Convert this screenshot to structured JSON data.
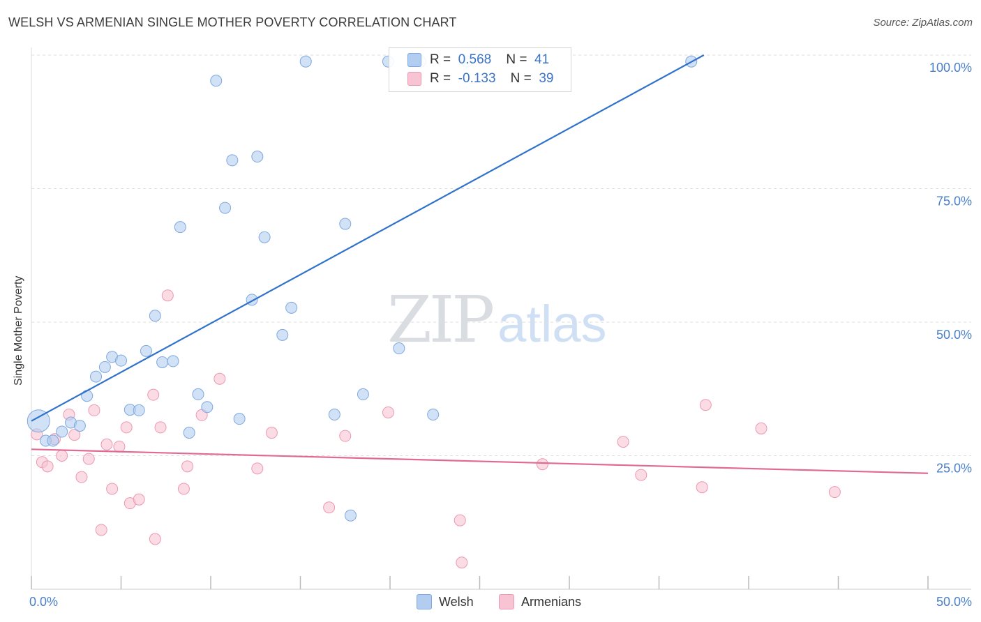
{
  "header": {
    "title": "WELSH VS ARMENIAN SINGLE MOTHER POVERTY CORRELATION CHART",
    "source": "Source: ZipAtlas.com"
  },
  "watermark": {
    "zip": "ZIP",
    "atlas": "atlas"
  },
  "legend_top": {
    "rows": [
      {
        "r_label": "R =",
        "r_value": "0.568",
        "n_label": "N =",
        "n_value": "41"
      },
      {
        "r_label": "R =",
        "r_value": "-0.133",
        "n_label": "N =",
        "n_value": "39"
      }
    ]
  },
  "legend_bottom": {
    "items": [
      "Welsh",
      "Armenians"
    ]
  },
  "colors": {
    "welsh_fill": "#b3cdf0",
    "welsh_stroke": "#7ea8e0",
    "welsh_line": "#2f72cc",
    "armenian_fill": "#f8c4d3",
    "armenian_stroke": "#ec98b2",
    "armenian_line": "#e16a93",
    "tick_label": "#4a7fcb",
    "grid": "#dddddd"
  },
  "chart_data": {
    "type": "scatter",
    "title": "WELSH VS ARMENIAN SINGLE MOTHER POVERTY CORRELATION CHART",
    "xlabel": "",
    "ylabel": "Single Mother Poverty",
    "xlim": [
      0,
      50
    ],
    "ylim": [
      0,
      100
    ],
    "x_tick_labels": [
      "0.0%",
      "50.0%"
    ],
    "y_ticks": [
      25,
      50,
      75,
      100
    ],
    "y_tick_labels": [
      "25.0%",
      "50.0%",
      "75.0%",
      "100.0%"
    ],
    "grid": true,
    "legend_position": "bottom",
    "series": [
      {
        "name": "Welsh",
        "R": 0.568,
        "N": 41,
        "trend": {
          "x": [
            0,
            37.5
          ],
          "y": [
            31.5,
            100
          ]
        },
        "points": [
          {
            "x": 0.4,
            "y": 31.5,
            "big": true
          },
          {
            "x": 0.8,
            "y": 27.8
          },
          {
            "x": 1.2,
            "y": 27.8
          },
          {
            "x": 1.7,
            "y": 29.5
          },
          {
            "x": 2.2,
            "y": 31.2
          },
          {
            "x": 2.7,
            "y": 30.6
          },
          {
            "x": 3.1,
            "y": 36.2
          },
          {
            "x": 3.6,
            "y": 39.8
          },
          {
            "x": 4.1,
            "y": 41.6
          },
          {
            "x": 4.5,
            "y": 43.5
          },
          {
            "x": 5.0,
            "y": 42.8
          },
          {
            "x": 5.5,
            "y": 33.6
          },
          {
            "x": 6.0,
            "y": 33.5
          },
          {
            "x": 6.4,
            "y": 44.6
          },
          {
            "x": 6.9,
            "y": 51.2
          },
          {
            "x": 7.3,
            "y": 42.5
          },
          {
            "x": 7.9,
            "y": 42.7
          },
          {
            "x": 8.3,
            "y": 67.8
          },
          {
            "x": 8.8,
            "y": 29.3
          },
          {
            "x": 9.3,
            "y": 36.5
          },
          {
            "x": 9.8,
            "y": 34.1
          },
          {
            "x": 10.3,
            "y": 95.2
          },
          {
            "x": 10.8,
            "y": 71.4
          },
          {
            "x": 11.2,
            "y": 80.3
          },
          {
            "x": 11.6,
            "y": 31.9
          },
          {
            "x": 12.3,
            "y": 54.2
          },
          {
            "x": 12.6,
            "y": 81.0
          },
          {
            "x": 13.0,
            "y": 65.9
          },
          {
            "x": 14.0,
            "y": 47.6
          },
          {
            "x": 14.5,
            "y": 52.7
          },
          {
            "x": 15.3,
            "y": 98.8
          },
          {
            "x": 16.9,
            "y": 32.7
          },
          {
            "x": 17.5,
            "y": 68.4
          },
          {
            "x": 17.8,
            "y": 13.8
          },
          {
            "x": 18.5,
            "y": 36.5
          },
          {
            "x": 19.9,
            "y": 98.8
          },
          {
            "x": 20.5,
            "y": 45.1
          },
          {
            "x": 21.7,
            "y": 98.8
          },
          {
            "x": 22.4,
            "y": 32.7
          },
          {
            "x": 24.3,
            "y": 98.8
          },
          {
            "x": 36.8,
            "y": 98.8
          }
        ]
      },
      {
        "name": "Armenians",
        "R": -0.133,
        "N": 39,
        "trend": {
          "x": [
            0,
            50
          ],
          "y": [
            26.2,
            21.7
          ]
        },
        "points": [
          {
            "x": 0.3,
            "y": 29.0
          },
          {
            "x": 0.6,
            "y": 23.8
          },
          {
            "x": 0.9,
            "y": 23.0
          },
          {
            "x": 1.3,
            "y": 28.1
          },
          {
            "x": 1.7,
            "y": 25.0
          },
          {
            "x": 2.1,
            "y": 32.7
          },
          {
            "x": 2.4,
            "y": 28.9
          },
          {
            "x": 2.8,
            "y": 21.0
          },
          {
            "x": 3.2,
            "y": 24.4
          },
          {
            "x": 3.5,
            "y": 33.5
          },
          {
            "x": 3.9,
            "y": 11.1
          },
          {
            "x": 4.2,
            "y": 27.1
          },
          {
            "x": 4.5,
            "y": 18.8
          },
          {
            "x": 4.9,
            "y": 26.7
          },
          {
            "x": 5.3,
            "y": 30.3
          },
          {
            "x": 5.5,
            "y": 16.1
          },
          {
            "x": 6.0,
            "y": 16.8
          },
          {
            "x": 6.8,
            "y": 36.4
          },
          {
            "x": 6.9,
            "y": 9.4
          },
          {
            "x": 7.2,
            "y": 30.3
          },
          {
            "x": 7.6,
            "y": 55.0
          },
          {
            "x": 8.5,
            "y": 18.8
          },
          {
            "x": 8.7,
            "y": 23.0
          },
          {
            "x": 9.5,
            "y": 32.6
          },
          {
            "x": 10.5,
            "y": 39.4
          },
          {
            "x": 12.6,
            "y": 22.6
          },
          {
            "x": 13.4,
            "y": 29.3
          },
          {
            "x": 16.6,
            "y": 15.3
          },
          {
            "x": 17.5,
            "y": 28.7
          },
          {
            "x": 19.9,
            "y": 33.1
          },
          {
            "x": 23.9,
            "y": 12.9
          },
          {
            "x": 24.0,
            "y": 5.0
          },
          {
            "x": 28.5,
            "y": 23.4
          },
          {
            "x": 33.0,
            "y": 27.6
          },
          {
            "x": 34.0,
            "y": 21.4
          },
          {
            "x": 37.4,
            "y": 19.1
          },
          {
            "x": 37.6,
            "y": 34.5
          },
          {
            "x": 40.7,
            "y": 30.1
          },
          {
            "x": 44.8,
            "y": 18.2
          }
        ]
      }
    ]
  }
}
